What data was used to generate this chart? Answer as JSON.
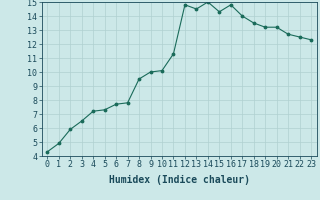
{
  "x": [
    0,
    1,
    2,
    3,
    4,
    5,
    6,
    7,
    8,
    9,
    10,
    11,
    12,
    13,
    14,
    15,
    16,
    17,
    18,
    19,
    20,
    21,
    22,
    23
  ],
  "y": [
    4.3,
    4.9,
    5.9,
    6.5,
    7.2,
    7.3,
    7.7,
    7.8,
    9.5,
    10.0,
    10.1,
    11.3,
    14.8,
    14.5,
    15.0,
    14.3,
    14.8,
    14.0,
    13.5,
    13.2,
    13.2,
    12.7,
    12.5,
    12.3
  ],
  "xlabel": "Humidex (Indice chaleur)",
  "ylim": [
    4,
    15
  ],
  "xlim": [
    -0.5,
    23.5
  ],
  "yticks": [
    4,
    5,
    6,
    7,
    8,
    9,
    10,
    11,
    12,
    13,
    14,
    15
  ],
  "xticks": [
    0,
    1,
    2,
    3,
    4,
    5,
    6,
    7,
    8,
    9,
    10,
    11,
    12,
    13,
    14,
    15,
    16,
    17,
    18,
    19,
    20,
    21,
    22,
    23
  ],
  "line_color": "#1a6b5a",
  "marker_color": "#1a6b5a",
  "bg_color": "#cce8e8",
  "grid_color": "#b0d0d0",
  "label_color": "#1a4a5a",
  "tick_font_size": 6,
  "xlabel_font_size": 7
}
